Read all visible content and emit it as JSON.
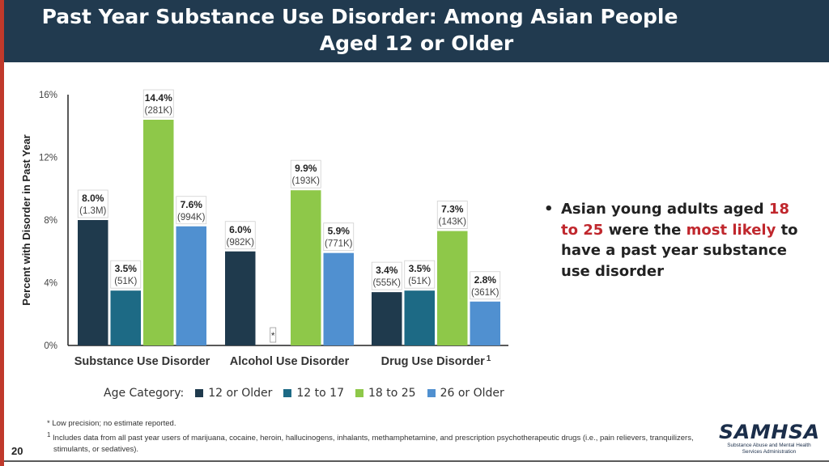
{
  "slide": {
    "title_line1": "Past Year Substance Use Disorder: Among Asian People",
    "title_line2": "Aged 12 or Older",
    "page_number": "20"
  },
  "chart_data": {
    "type": "bar",
    "ylabel": "Percent with Disorder in Past Year",
    "ylim": [
      0,
      16
    ],
    "yticks": [
      "0%",
      "4%",
      "8%",
      "12%",
      "16%"
    ],
    "ytick_values": [
      0,
      4,
      8,
      12,
      16
    ],
    "categories": [
      "Substance Use Disorder",
      "Alcohol Use Disorder",
      "Drug Use Disorder"
    ],
    "category_superscripts": [
      "",
      "",
      "1"
    ],
    "series": [
      {
        "name": "12 or Older",
        "color": "#1f3a4d",
        "values": [
          8.0,
          6.0,
          3.4
        ],
        "pct_labels": [
          "8.0%",
          "6.0%",
          "3.4%"
        ],
        "count_labels": [
          "(1.3M)",
          "(982K)",
          "(555K)"
        ]
      },
      {
        "name": "12 to 17",
        "color": "#1d6a85",
        "values": [
          3.5,
          null,
          3.5
        ],
        "pct_labels": [
          "3.5%",
          "*",
          "3.5%"
        ],
        "count_labels": [
          "(51K)",
          "",
          "(51K)"
        ]
      },
      {
        "name": "18 to 25",
        "color": "#8ec849",
        "values": [
          14.4,
          9.9,
          7.3
        ],
        "pct_labels": [
          "14.4%",
          "9.9%",
          "7.3%"
        ],
        "count_labels": [
          "(281K)",
          "(193K)",
          "(143K)"
        ]
      },
      {
        "name": "26 or Older",
        "color": "#5090d0",
        "values": [
          7.6,
          5.9,
          2.8
        ],
        "pct_labels": [
          "7.6%",
          "5.9%",
          "2.8%"
        ],
        "count_labels": [
          "(994K)",
          "(771K)",
          "(361K)"
        ]
      }
    ],
    "legend_title": "Age Category:",
    "legend_position": "bottom"
  },
  "bullet": {
    "part1": "Asian young adults aged ",
    "part2": "18 to 25",
    "part3": " were the ",
    "part4": "most likely",
    "part5": " to have a past year substance use disorder"
  },
  "footnotes": {
    "fn1": "* Low precision; no estimate reported.",
    "fn2_mark": "1",
    "fn2": " Includes data from all past year users of marijuana, cocaine, heroin, hallucinogens, inhalants, methamphetamine, and prescription psychotherapeutic drugs (i.e., pain relievers, tranquilizers, stimulants, or sedatives)."
  },
  "logo": {
    "word": "SAMHSA",
    "sub1": "Substance Abuse and Mental Health",
    "sub2": "Services Administration"
  },
  "colors": {
    "header_bg": "#213a4f",
    "accent_red": "#c0272d"
  }
}
